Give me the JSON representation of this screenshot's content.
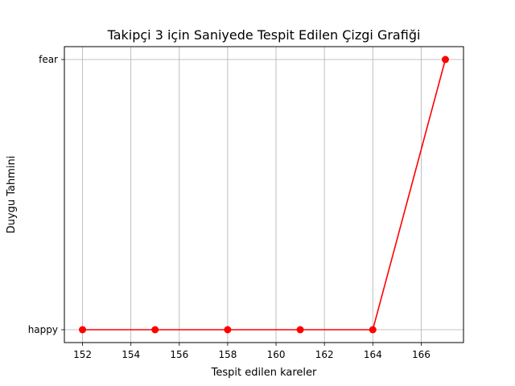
{
  "chart_data": {
    "type": "line",
    "title": "Takipçi 3 için Saniyede Tespit Edilen Çizgi Grafiği",
    "xlabel": "Tespit edilen kareler",
    "ylabel": "Duygu Tahmini",
    "x": [
      152,
      155,
      158,
      161,
      164,
      167
    ],
    "y_categories": [
      "happy",
      "fear"
    ],
    "series": [
      {
        "values": [
          "happy",
          "happy",
          "happy",
          "happy",
          "happy",
          "fear"
        ],
        "color": "#ff0000",
        "marker": "circle"
      }
    ],
    "x_ticks": [
      152,
      154,
      156,
      158,
      160,
      162,
      164,
      166
    ],
    "xlim": [
      151.25,
      167.75
    ],
    "grid": true,
    "legend": "none"
  }
}
